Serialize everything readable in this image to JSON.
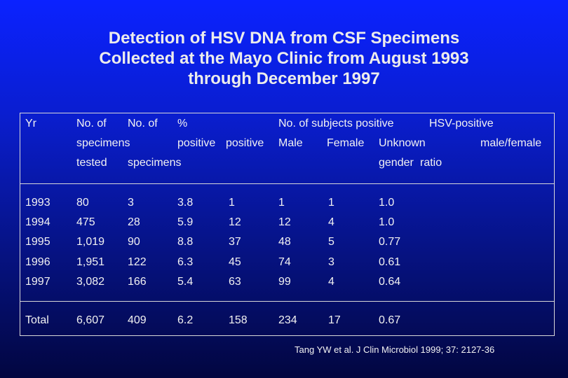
{
  "title": {
    "line1": "Detection  of HSV DNA from CSF  Specimens",
    "line2": "Collected at the Mayo Clinic from August 1993",
    "line3": "through December 1997"
  },
  "table": {
    "headers": {
      "yr": "Yr",
      "specimens_tested": [
        "No. of",
        "specimens",
        "tested"
      ],
      "positive_specimens": [
        "No. of",
        "positive",
        "specimens"
      ],
      "pct_positive": [
        "%",
        "positive"
      ],
      "subjects_positive_group": "No. of subjects positive",
      "male": "Male",
      "female": "Female",
      "unknown_gender": [
        "Unknown",
        "gender"
      ],
      "ratio": [
        "HSV-positive",
        "male/female",
        "ratio"
      ]
    },
    "rows": [
      {
        "yr": "1993",
        "tested": "80",
        "positive": "3",
        "pct": "3.8",
        "male": "1",
        "female": "1",
        "unknown": "1",
        "ratio": "1.0"
      },
      {
        "yr": "1994",
        "tested": "475",
        "positive": "28",
        "pct": "5.9",
        "male": "12",
        "female": "12",
        "unknown": "4",
        "ratio": "1.0"
      },
      {
        "yr": "1995",
        "tested": "1,019",
        "positive": "90",
        "pct": "8.8",
        "male": "37",
        "female": "48",
        "unknown": "5",
        "ratio": "0.77"
      },
      {
        "yr": "1996",
        "tested": "1,951",
        "positive": "122",
        "pct": "6.3",
        "male": "45",
        "female": "74",
        "unknown": "3",
        "ratio": "0.61"
      },
      {
        "yr": "1997",
        "tested": "3,082",
        "positive": "166",
        "pct": "5.4",
        "male": "63",
        "female": "99",
        "unknown": "4",
        "ratio": "0.64"
      }
    ],
    "total": {
      "yr": "Total",
      "tested": "6,607",
      "positive": "409",
      "pct": "6.2",
      "male": "158",
      "female": "234",
      "unknown": "17",
      "ratio": "0.67"
    }
  },
  "citation": "Tang YW et al. J Clin Microbiol 1999; 37: 2127-36",
  "colors": {
    "background_top": "#0b22ff",
    "background_bottom": "#020640",
    "text": "#ffffff",
    "rule": "#d8d8d8"
  }
}
